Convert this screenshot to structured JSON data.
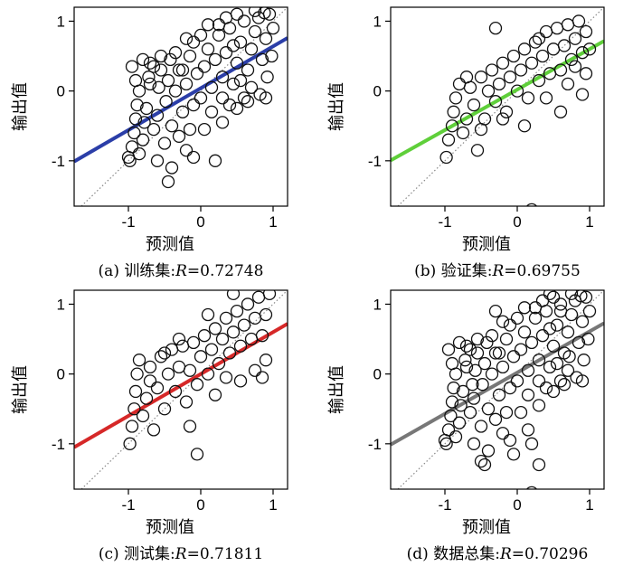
{
  "chart_data": [
    {
      "type": "scatter",
      "panel_id": "a",
      "title": "",
      "caption_prefix": "(a) 训练集:",
      "r_symbol": "R",
      "r_value": "=0.72748",
      "xlabel": "预测值",
      "ylabel": "输出值",
      "xlim": [
        -1.75,
        1.2
      ],
      "ylim": [
        -1.65,
        1.2
      ],
      "xticks": [
        "-1",
        "0",
        "1"
      ],
      "yticks": [
        "-1",
        "0",
        "1"
      ],
      "grid": false,
      "fit_line": {
        "slope": 0.6,
        "intercept": 0.04,
        "color": "#2b3ea8",
        "x_range": [
          -1.75,
          1.2
        ]
      },
      "identity_line": {
        "style": "dotted",
        "color": "#888888"
      },
      "points": [
        [
          -1.0,
          -0.95
        ],
        [
          -0.98,
          -1.0
        ],
        [
          -0.95,
          -0.8
        ],
        [
          -0.92,
          -0.6
        ],
        [
          -0.9,
          -0.4
        ],
        [
          -0.88,
          -0.2
        ],
        [
          -0.85,
          0.0
        ],
        [
          -0.9,
          0.15
        ],
        [
          -0.95,
          0.35
        ],
        [
          -0.85,
          -0.9
        ],
        [
          -0.8,
          -0.7
        ],
        [
          -0.78,
          -0.45
        ],
        [
          -0.75,
          -0.25
        ],
        [
          -0.72,
          0.2
        ],
        [
          -0.7,
          0.4
        ],
        [
          -0.65,
          -0.55
        ],
        [
          -0.6,
          -0.35
        ],
        [
          -0.58,
          0.05
        ],
        [
          -0.55,
          0.3
        ],
        [
          -0.5,
          -0.75
        ],
        [
          -0.48,
          -0.15
        ],
        [
          -0.45,
          0.15
        ],
        [
          -0.42,
          0.45
        ],
        [
          -0.4,
          -0.5
        ],
        [
          -0.35,
          0.0
        ],
        [
          -0.3,
          0.3
        ],
        [
          -0.25,
          -0.3
        ],
        [
          -0.2,
          0.1
        ],
        [
          -0.15,
          0.5
        ],
        [
          -0.1,
          -0.2
        ],
        [
          -0.05,
          0.25
        ],
        [
          0.0,
          -0.1
        ],
        [
          0.05,
          0.35
        ],
        [
          0.1,
          0.6
        ],
        [
          0.15,
          0.05
        ],
        [
          0.2,
          0.45
        ],
        [
          0.25,
          0.8
        ],
        [
          0.3,
          0.2
        ],
        [
          0.35,
          0.55
        ],
        [
          0.4,
          0.9
        ],
        [
          0.45,
          0.1
        ],
        [
          0.5,
          0.4
        ],
        [
          0.55,
          0.7
        ],
        [
          0.6,
          1.0
        ],
        [
          0.65,
          0.3
        ],
        [
          0.7,
          0.6
        ],
        [
          0.75,
          0.85
        ],
        [
          0.8,
          1.05
        ],
        [
          0.85,
          0.45
        ],
        [
          0.9,
          0.75
        ],
        [
          0.95,
          1.1
        ],
        [
          1.0,
          0.9
        ],
        [
          0.98,
          0.5
        ],
        [
          0.92,
          0.2
        ],
        [
          0.88,
          1.12
        ],
        [
          0.82,
          -0.05
        ],
        [
          0.7,
          0.05
        ],
        [
          0.6,
          -0.1
        ],
        [
          -0.4,
          -1.1
        ],
        [
          -0.1,
          -0.95
        ],
        [
          0.2,
          -1.0
        ],
        [
          -0.2,
          -0.85
        ],
        [
          -0.45,
          -1.3
        ],
        [
          -0.3,
          -0.65
        ],
        [
          0.05,
          -0.55
        ],
        [
          0.3,
          -0.45
        ],
        [
          0.5,
          -0.25
        ],
        [
          -0.6,
          -1.0
        ],
        [
          -0.7,
          0.1
        ],
        [
          -0.2,
          0.75
        ],
        [
          0.0,
          0.8
        ],
        [
          0.1,
          0.95
        ],
        [
          -0.1,
          0.7
        ],
        [
          0.35,
          1.05
        ],
        [
          0.5,
          1.1
        ],
        [
          0.75,
          1.15
        ],
        [
          -0.35,
          0.55
        ],
        [
          -0.55,
          0.5
        ],
        [
          0.15,
          -0.3
        ],
        [
          0.4,
          -0.2
        ],
        [
          0.65,
          -0.15
        ],
        [
          -0.8,
          0.45
        ],
        [
          -0.65,
          0.35
        ],
        [
          0.25,
          0.95
        ],
        [
          0.9,
          -0.1
        ],
        [
          0.45,
          0.65
        ],
        [
          0.55,
          0.15
        ],
        [
          0.3,
          -0.1
        ],
        [
          -0.15,
          -0.55
        ],
        [
          -0.25,
          0.3
        ]
      ]
    },
    {
      "type": "scatter",
      "panel_id": "b",
      "title": "",
      "caption_prefix": "(b) 验证集:",
      "r_symbol": "R",
      "r_value": "=0.69755",
      "xlabel": "预测值",
      "ylabel": "输出值",
      "xlim": [
        -1.75,
        1.2
      ],
      "ylim": [
        -1.65,
        1.2
      ],
      "xticks": [
        "-1",
        "0",
        "1"
      ],
      "yticks": [
        "-1",
        "0",
        "1"
      ],
      "grid": false,
      "fit_line": {
        "slope": 0.58,
        "intercept": 0.02,
        "color": "#5fcf3a",
        "x_range": [
          -1.75,
          1.2
        ]
      },
      "identity_line": {
        "style": "dotted",
        "color": "#888888"
      },
      "points": [
        [
          -0.98,
          -0.95
        ],
        [
          -0.95,
          -0.7
        ],
        [
          -0.9,
          -0.5
        ],
        [
          -0.88,
          -0.3
        ],
        [
          -0.85,
          -0.1
        ],
        [
          -0.8,
          0.1
        ],
        [
          -0.75,
          -0.6
        ],
        [
          -0.7,
          -0.4
        ],
        [
          -0.65,
          0.05
        ],
        [
          -0.6,
          -0.2
        ],
        [
          -0.55,
          -0.85
        ],
        [
          -0.5,
          0.2
        ],
        [
          -0.45,
          -0.4
        ],
        [
          -0.4,
          0.0
        ],
        [
          -0.35,
          0.3
        ],
        [
          -0.3,
          -0.15
        ],
        [
          -0.25,
          0.1
        ],
        [
          -0.2,
          0.4
        ],
        [
          -0.15,
          -0.3
        ],
        [
          -0.1,
          0.2
        ],
        [
          -0.05,
          0.5
        ],
        [
          0.0,
          0.0
        ],
        [
          0.05,
          0.3
        ],
        [
          0.1,
          0.6
        ],
        [
          0.15,
          -0.1
        ],
        [
          0.2,
          0.4
        ],
        [
          0.25,
          0.7
        ],
        [
          0.3,
          0.15
        ],
        [
          0.35,
          0.5
        ],
        [
          0.4,
          0.85
        ],
        [
          0.45,
          0.25
        ],
        [
          0.5,
          0.6
        ],
        [
          0.55,
          0.9
        ],
        [
          0.6,
          0.3
        ],
        [
          0.65,
          0.65
        ],
        [
          0.7,
          0.95
        ],
        [
          0.75,
          0.45
        ],
        [
          0.8,
          0.75
        ],
        [
          0.85,
          1.0
        ],
        [
          0.9,
          0.55
        ],
        [
          0.95,
          0.85
        ],
        [
          1.0,
          0.6
        ],
        [
          0.9,
          -0.05
        ],
        [
          0.95,
          0.25
        ],
        [
          -0.3,
          0.9
        ],
        [
          0.2,
          -1.7
        ],
        [
          -0.7,
          0.2
        ],
        [
          0.6,
          -0.3
        ],
        [
          0.4,
          -0.1
        ],
        [
          -0.2,
          -0.4
        ],
        [
          0.1,
          -0.5
        ],
        [
          -0.5,
          -0.55
        ],
        [
          0.7,
          0.1
        ],
        [
          0.3,
          0.75
        ],
        [
          0.8,
          0.35
        ]
      ]
    },
    {
      "type": "scatter",
      "panel_id": "c",
      "title": "",
      "caption_prefix": "(c) 测试集:",
      "r_symbol": "R",
      "r_value": "=0.71811",
      "xlabel": "预测值",
      "ylabel": "输出值",
      "xlim": [
        -1.75,
        1.2
      ],
      "ylim": [
        -1.65,
        1.2
      ],
      "xticks": [
        "-1",
        "0",
        "1"
      ],
      "yticks": [
        "-1",
        "0",
        "1"
      ],
      "grid": false,
      "fit_line": {
        "slope": 0.6,
        "intercept": 0.0,
        "color": "#d62828",
        "x_range": [
          -1.75,
          1.2
        ]
      },
      "identity_line": {
        "style": "dotted",
        "color": "#888888"
      },
      "points": [
        [
          -0.98,
          -1.0
        ],
        [
          -0.95,
          -0.75
        ],
        [
          -0.92,
          -0.5
        ],
        [
          -0.9,
          -0.25
        ],
        [
          -0.88,
          0.0
        ],
        [
          -0.85,
          0.2
        ],
        [
          -0.8,
          -0.6
        ],
        [
          -0.75,
          -0.35
        ],
        [
          -0.7,
          0.1
        ],
        [
          -0.65,
          -0.8
        ],
        [
          -0.6,
          -0.2
        ],
        [
          -0.55,
          0.25
        ],
        [
          -0.5,
          -0.5
        ],
        [
          -0.45,
          0.0
        ],
        [
          -0.4,
          0.35
        ],
        [
          -0.35,
          -0.25
        ],
        [
          -0.3,
          0.1
        ],
        [
          -0.25,
          0.4
        ],
        [
          -0.2,
          -0.4
        ],
        [
          -0.15,
          0.05
        ],
        [
          -0.1,
          0.45
        ],
        [
          -0.05,
          -0.15
        ],
        [
          0.0,
          0.25
        ],
        [
          0.05,
          0.55
        ],
        [
          0.1,
          0.0
        ],
        [
          0.15,
          0.35
        ],
        [
          0.2,
          0.65
        ],
        [
          0.25,
          0.15
        ],
        [
          0.3,
          0.5
        ],
        [
          0.35,
          0.8
        ],
        [
          0.4,
          0.3
        ],
        [
          0.45,
          0.6
        ],
        [
          0.5,
          0.9
        ],
        [
          0.55,
          0.4
        ],
        [
          0.6,
          0.7
        ],
        [
          0.65,
          1.0
        ],
        [
          0.7,
          0.5
        ],
        [
          0.75,
          0.8
        ],
        [
          0.8,
          1.1
        ],
        [
          0.85,
          0.55
        ],
        [
          0.9,
          0.85
        ],
        [
          0.95,
          1.15
        ],
        [
          0.9,
          0.2
        ],
        [
          0.85,
          -0.05
        ],
        [
          0.75,
          0.05
        ],
        [
          -0.05,
          -1.15
        ],
        [
          -0.15,
          -0.75
        ],
        [
          0.45,
          1.15
        ],
        [
          -0.5,
          0.3
        ],
        [
          -0.3,
          0.5
        ],
        [
          0.2,
          -0.3
        ],
        [
          0.55,
          -0.1
        ],
        [
          -0.7,
          -0.1
        ],
        [
          0.1,
          0.85
        ],
        [
          0.35,
          -0.05
        ]
      ]
    },
    {
      "type": "scatter",
      "panel_id": "d",
      "title": "",
      "caption_prefix": "(d) 数据总集:",
      "r_symbol": "R",
      "r_value": "=0.70296",
      "xlabel": "预测值",
      "ylabel": "输出值",
      "xlim": [
        -1.75,
        1.2
      ],
      "ylim": [
        -1.65,
        1.2
      ],
      "xticks": [
        "-1",
        "0",
        "1"
      ],
      "yticks": [
        "-1",
        "0",
        "1"
      ],
      "grid": false,
      "fit_line": {
        "slope": 0.59,
        "intercept": 0.02,
        "color": "#777777",
        "x_range": [
          -1.75,
          1.2
        ]
      },
      "identity_line": {
        "style": "dotted",
        "color": "#888888"
      },
      "points": [
        [
          -1.0,
          -0.95
        ],
        [
          -0.98,
          -1.0
        ],
        [
          -0.95,
          -0.8
        ],
        [
          -0.92,
          -0.6
        ],
        [
          -0.9,
          -0.4
        ],
        [
          -0.88,
          -0.2
        ],
        [
          -0.85,
          0.0
        ],
        [
          -0.9,
          0.15
        ],
        [
          -0.95,
          0.35
        ],
        [
          -0.85,
          -0.9
        ],
        [
          -0.8,
          -0.7
        ],
        [
          -0.78,
          -0.45
        ],
        [
          -0.75,
          -0.25
        ],
        [
          -0.72,
          0.2
        ],
        [
          -0.7,
          0.4
        ],
        [
          -0.65,
          -0.55
        ],
        [
          -0.6,
          -0.35
        ],
        [
          -0.58,
          0.05
        ],
        [
          -0.55,
          0.3
        ],
        [
          -0.5,
          -0.75
        ],
        [
          -0.48,
          -0.15
        ],
        [
          -0.45,
          0.15
        ],
        [
          -0.42,
          0.45
        ],
        [
          -0.4,
          -0.5
        ],
        [
          -0.35,
          0.0
        ],
        [
          -0.3,
          0.3
        ],
        [
          -0.25,
          -0.3
        ],
        [
          -0.2,
          0.1
        ],
        [
          -0.15,
          0.5
        ],
        [
          -0.1,
          -0.2
        ],
        [
          -0.05,
          0.25
        ],
        [
          0.0,
          -0.1
        ],
        [
          0.05,
          0.35
        ],
        [
          0.1,
          0.6
        ],
        [
          0.15,
          0.05
        ],
        [
          0.2,
          0.45
        ],
        [
          0.25,
          0.8
        ],
        [
          0.3,
          0.2
        ],
        [
          0.35,
          0.55
        ],
        [
          0.4,
          0.9
        ],
        [
          0.45,
          0.1
        ],
        [
          0.5,
          0.4
        ],
        [
          0.55,
          0.7
        ],
        [
          0.6,
          1.0
        ],
        [
          0.65,
          0.3
        ],
        [
          0.7,
          0.6
        ],
        [
          0.75,
          0.85
        ],
        [
          0.8,
          1.05
        ],
        [
          0.85,
          0.45
        ],
        [
          0.9,
          0.75
        ],
        [
          0.95,
          1.1
        ],
        [
          1.0,
          0.9
        ],
        [
          0.98,
          0.5
        ],
        [
          0.92,
          0.2
        ],
        [
          0.88,
          1.12
        ],
        [
          0.82,
          -0.05
        ],
        [
          0.7,
          0.05
        ],
        [
          0.6,
          -0.1
        ],
        [
          -0.4,
          -1.1
        ],
        [
          -0.1,
          -0.95
        ],
        [
          0.2,
          -1.0
        ],
        [
          -0.2,
          -0.85
        ],
        [
          -0.45,
          -1.3
        ],
        [
          -0.3,
          -0.65
        ],
        [
          0.05,
          -0.55
        ],
        [
          0.3,
          -0.45
        ],
        [
          0.5,
          -0.25
        ],
        [
          -0.6,
          -1.0
        ],
        [
          -0.7,
          0.1
        ],
        [
          -0.2,
          0.75
        ],
        [
          0.0,
          0.8
        ],
        [
          0.1,
          0.95
        ],
        [
          -0.1,
          0.7
        ],
        [
          0.35,
          1.05
        ],
        [
          0.5,
          1.1
        ],
        [
          0.75,
          1.15
        ],
        [
          -0.35,
          0.55
        ],
        [
          -0.55,
          0.5
        ],
        [
          0.15,
          -0.3
        ],
        [
          0.4,
          -0.2
        ],
        [
          0.65,
          -0.15
        ],
        [
          -0.8,
          0.45
        ],
        [
          -0.65,
          0.35
        ],
        [
          0.25,
          0.95
        ],
        [
          0.9,
          -0.1
        ],
        [
          0.45,
          0.65
        ],
        [
          0.55,
          0.15
        ],
        [
          0.3,
          -0.1
        ],
        [
          -0.15,
          -0.55
        ],
        [
          -0.25,
          0.3
        ],
        [
          0.2,
          -1.7
        ],
        [
          -0.05,
          -1.15
        ],
        [
          -0.3,
          0.9
        ],
        [
          0.45,
          1.15
        ],
        [
          0.3,
          -1.3
        ],
        [
          -0.5,
          -1.25
        ],
        [
          0.15,
          -0.8
        ],
        [
          0.6,
          0.9
        ],
        [
          0.72,
          0.25
        ],
        [
          -0.62,
          -0.15
        ]
      ]
    }
  ]
}
